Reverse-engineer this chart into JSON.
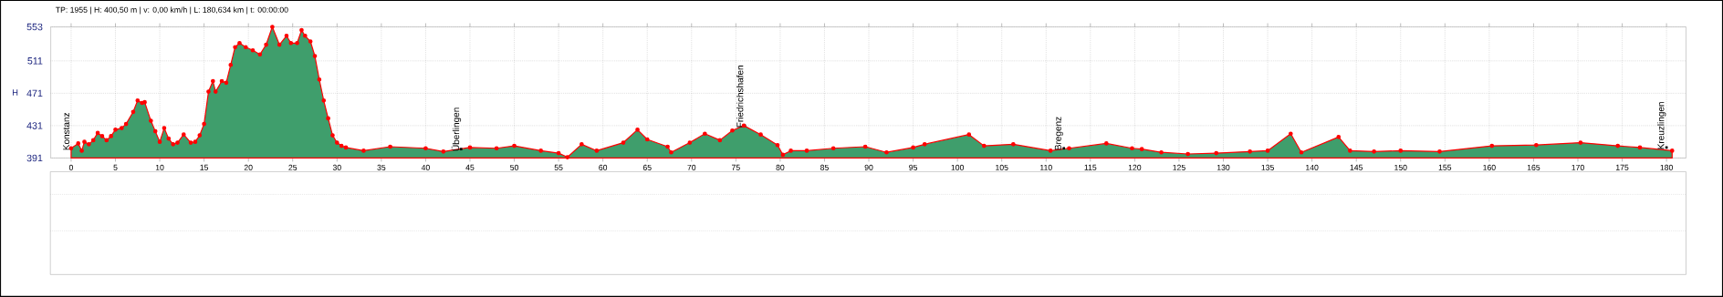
{
  "chart_data": {
    "type": "area",
    "title": "TP: 1955 | H: 400,50 m | v: 0,00 km/h | L: 180,634 km | t: 00:00:00",
    "ylabel": "H",
    "x": [
      0,
      0.8,
      1.2,
      1.5,
      2,
      2.5,
      3,
      3.5,
      4,
      4.5,
      5,
      5.7,
      6.2,
      7,
      7.5,
      8,
      8.3,
      9,
      9.5,
      10,
      10.5,
      11,
      11.5,
      12,
      12.7,
      13.5,
      14,
      14.5,
      15,
      15.5,
      16,
      16.3,
      17,
      17.5,
      18,
      18.5,
      19,
      19.7,
      20.5,
      21.3,
      22,
      22.7,
      23.5,
      24.3,
      24.8,
      25.5,
      26,
      26.4,
      27,
      27.5,
      28,
      28.5,
      29,
      29.5,
      30,
      30.5,
      31,
      33,
      36,
      40,
      42,
      45,
      48,
      50,
      53,
      55,
      56,
      57.6,
      59.3,
      62.3,
      63.9,
      65,
      67.3,
      67.7,
      69.8,
      71.5,
      73.2,
      74.6,
      75.9,
      77.8,
      79.7,
      80.3,
      81.2,
      83,
      86,
      89.6,
      92,
      95,
      96.3,
      101.3,
      103,
      106.3,
      110.5,
      112.6,
      116.8,
      119.7,
      120.8,
      123,
      126,
      129.2,
      133,
      135,
      137.6,
      138.8,
      143,
      144.3,
      147,
      150,
      154.4,
      160.3,
      165.3,
      170.3,
      174.5,
      177,
      180.634
    ],
    "series": [
      {
        "color": "#3f9e6c",
        "values": [
          403,
          409,
          400,
          411,
          408,
          413,
          422,
          418,
          413,
          418,
          426,
          428,
          433,
          448,
          462,
          459,
          460,
          437,
          424,
          411,
          428,
          415,
          408,
          410,
          420,
          410,
          411,
          419,
          433,
          473,
          486,
          473,
          486,
          484,
          506,
          528,
          533,
          528,
          524,
          519,
          531,
          553,
          531,
          542,
          533,
          533,
          549,
          542,
          535,
          517,
          488,
          462,
          440,
          419,
          410,
          406,
          404,
          400,
          405,
          403,
          399,
          404,
          403,
          406,
          400,
          397,
          392,
          408,
          400,
          410,
          426,
          414,
          405,
          398,
          410,
          421,
          413,
          425,
          431,
          420,
          407,
          395,
          400,
          400,
          403,
          405,
          398,
          404,
          408,
          420,
          406,
          408,
          400,
          403,
          409,
          403,
          402,
          398,
          396,
          397,
          399,
          400,
          421,
          398,
          417,
          400,
          399,
          400,
          399,
          406,
          407,
          410,
          406,
          404,
          400
        ]
      }
    ],
    "marker": "circle",
    "xlim": [
      -2.3,
      182.2
    ],
    "ylim": [
      391,
      553
    ],
    "xticks": [
      0,
      5,
      10,
      15,
      20,
      25,
      30,
      35,
      40,
      45,
      50,
      55,
      60,
      65,
      70,
      75,
      80,
      85,
      90,
      95,
      100,
      105,
      110,
      115,
      120,
      125,
      130,
      135,
      140,
      145,
      150,
      155,
      160,
      165,
      170,
      175,
      180
    ],
    "yticks": [
      391,
      431,
      471,
      511,
      553
    ],
    "grid": true,
    "annotations": [
      {
        "text": "Konstanz",
        "x": 0,
        "y": 403
      },
      {
        "text": "Überlingen",
        "x": 44,
        "y": 402
      },
      {
        "text": "Friedrichshafen",
        "x": 76,
        "y": 431
      },
      {
        "text": "Bregenz",
        "x": 112,
        "y": 403
      },
      {
        "text": "Kreuzlingen",
        "x": 180,
        "y": 404
      }
    ]
  }
}
